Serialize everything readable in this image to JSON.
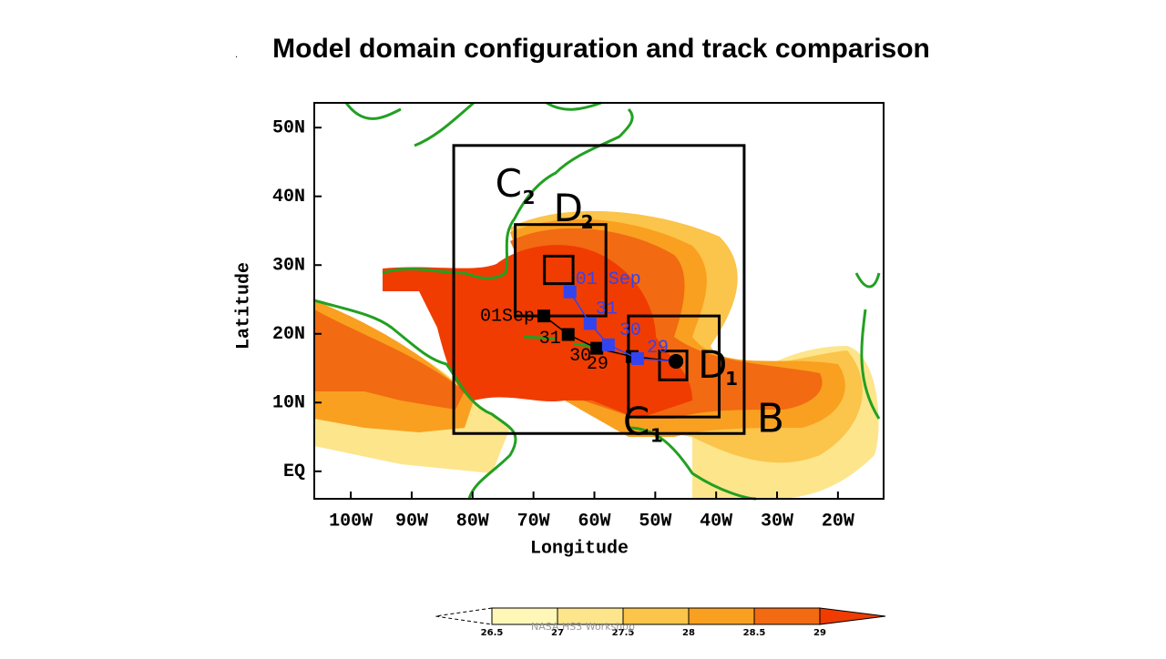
{
  "chart_data": {
    "type": "map",
    "title": "Model domain configuration and track comparison",
    "xlabel": "Longitude",
    "ylabel": "Latitude",
    "xlim": [
      -106,
      -12.5
    ],
    "ylim": [
      -4,
      53.6
    ],
    "xticks": [
      {
        "value": -100,
        "label": "100W"
      },
      {
        "value": -90,
        "label": "90W"
      },
      {
        "value": -80,
        "label": "80W"
      },
      {
        "value": -70,
        "label": "70W"
      },
      {
        "value": -60,
        "label": "60W"
      },
      {
        "value": -50,
        "label": "50W"
      },
      {
        "value": -40,
        "label": "40W"
      },
      {
        "value": -30,
        "label": "30W"
      },
      {
        "value": -20,
        "label": "20W"
      }
    ],
    "yticks": [
      {
        "value": 0,
        "label": "EQ"
      },
      {
        "value": 10,
        "label": "10N"
      },
      {
        "value": 20,
        "label": "20N"
      },
      {
        "value": 30,
        "label": "30N"
      },
      {
        "value": 40,
        "label": "40N"
      },
      {
        "value": 50,
        "label": "50N"
      }
    ],
    "domains": [
      {
        "label": "B",
        "lon": [
          -83.1,
          -35.4
        ],
        "lat": [
          5.5,
          47.4
        ]
      },
      {
        "label": "C",
        "sub": "2",
        "lon": [
          -73,
          -58.1
        ],
        "lat": [
          22.6,
          35.9
        ]
      },
      {
        "label": "D",
        "sub": "2",
        "lon": [
          -68.2,
          -63.5
        ],
        "lat": [
          27.3,
          31.3
        ]
      },
      {
        "label": "C",
        "sub": "1",
        "lon": [
          -54.4,
          -39.5
        ],
        "lat": [
          7.9,
          22.6
        ]
      },
      {
        "label": "D",
        "sub": "1",
        "lon": [
          -49.3,
          -44.8
        ],
        "lat": [
          13.3,
          17.5
        ]
      }
    ],
    "tracks": [
      {
        "color": "#000000",
        "lon": [
          -68.3,
          -64.3,
          -59.6,
          -53.8,
          -46.6
        ],
        "lat": [
          22.6,
          19.9,
          17.9,
          16.7,
          16.0
        ],
        "labels": [
          "01Sep",
          "31",
          "30",
          "29",
          null
        ]
      },
      {
        "color": "#3344ee",
        "lon": [
          -64.0,
          -60.7,
          -57.7,
          -52.9,
          -46.6
        ],
        "lat": [
          26.1,
          21.5,
          18.4,
          16.4,
          16.0
        ],
        "labels": [
          "01 Sep",
          "31",
          "30",
          "29",
          null
        ]
      }
    ],
    "colorbar": {
      "ticks": [
        26.5,
        27,
        27.5,
        28,
        28.5,
        29
      ],
      "colors": [
        "#fff7b8",
        "#fde58c",
        "#fbc44a",
        "#f9a020",
        "#f26a12",
        "#f03c00"
      ]
    },
    "footer": "NASA HS3 Workshop"
  }
}
